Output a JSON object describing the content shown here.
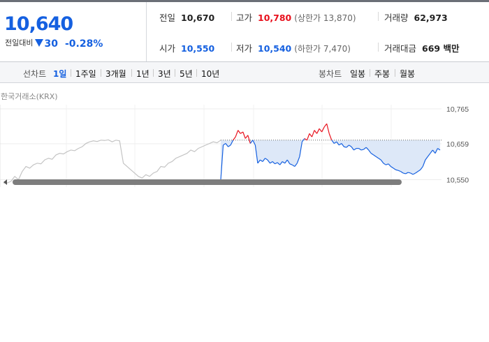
{
  "quote": {
    "price": "10,640",
    "change_label": "전일대비",
    "change_value": "30",
    "change_pct": "-0.28%"
  },
  "stats": {
    "prev_close": {
      "label": "전일",
      "value": "10,670"
    },
    "high": {
      "label": "고가",
      "value": "10,780",
      "sub": "(상한가 13,870)"
    },
    "volume": {
      "label": "거래량",
      "value": "62,973"
    },
    "open": {
      "label": "시가",
      "value": "10,550"
    },
    "low": {
      "label": "저가",
      "value": "10,540",
      "sub": "(하한가 7,470)"
    },
    "amount": {
      "label": "거래대금",
      "value": "669 백만"
    }
  },
  "toolbar": {
    "line_label": "선차트",
    "periods": [
      "1일",
      "1주일",
      "3개월",
      "1년",
      "3년",
      "5년",
      "10년"
    ],
    "active_period": "1일",
    "candle_label": "봉차트",
    "candle_periods": [
      "일봉",
      "주봉",
      "월봉"
    ]
  },
  "chart": {
    "exchange": "한국거래소(KRX)"
  },
  "chart_data": {
    "type": "line",
    "y_tick_labels": [
      "10,765",
      "10,659",
      "10,550"
    ],
    "reference": 10670,
    "ylim": [
      10550,
      10765
    ],
    "gridlines": true,
    "colors": {
      "up": "#e8101c",
      "down": "#1560e0",
      "fill": "#dde8f8",
      "history": "#c4c4c4",
      "ref": "#666666"
    },
    "history": [
      10540,
      10540,
      10545,
      10560,
      10550,
      10575,
      10590,
      10585,
      10595,
      10600,
      10598,
      10610,
      10615,
      10612,
      10625,
      10630,
      10628,
      10635,
      10640,
      10638,
      10645,
      10650,
      10660,
      10665,
      10668,
      10666,
      10670,
      10669,
      10671,
      10665,
      10670,
      10668,
      10600,
      10590,
      10580,
      10570,
      10560,
      10555,
      10565,
      10560,
      10570,
      10575,
      10590,
      10588,
      10600,
      10605,
      10615,
      10620,
      10625,
      10630,
      10640,
      10635,
      10645,
      10650,
      10655,
      10660,
      10665,
      10662,
      10670
    ],
    "intraday": [
      10550,
      10655,
      10660,
      10650,
      10655,
      10670,
      10680,
      10700,
      10690,
      10695,
      10675,
      10685,
      10660,
      10670,
      10655,
      10600,
      10610,
      10605,
      10615,
      10610,
      10600,
      10605,
      10598,
      10602,
      10595,
      10605,
      10600,
      10610,
      10598,
      10595,
      10590,
      10600,
      10620,
      10665,
      10675,
      10670,
      10690,
      10680,
      10700,
      10690,
      10705,
      10695,
      10710,
      10720,
      10690,
      10670,
      10660,
      10665,
      10655,
      10660,
      10650,
      10648,
      10655,
      10650,
      10640,
      10645,
      10645,
      10640,
      10642,
      10648,
      10640,
      10630,
      10625,
      10620,
      10615,
      10610,
      10600,
      10595,
      10598,
      10590,
      10585,
      10580,
      10578,
      10575,
      10570,
      10568,
      10572,
      10570,
      10566,
      10570,
      10575,
      10580,
      10590,
      10610,
      10620,
      10630,
      10640,
      10630,
      10645,
      10640
    ]
  }
}
